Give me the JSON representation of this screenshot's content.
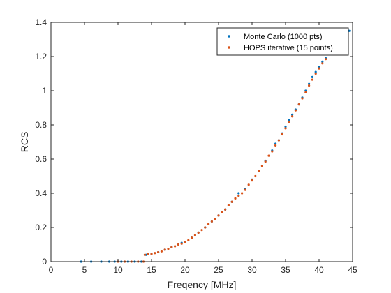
{
  "chart_data": {
    "type": "scatter",
    "title": "",
    "xlabel": "Freqency [MHz]",
    "ylabel": "RCS",
    "xlim": [
      0,
      45
    ],
    "ylim": [
      0,
      1.4
    ],
    "x_ticks": [
      0,
      5,
      10,
      15,
      20,
      25,
      30,
      35,
      40,
      45
    ],
    "y_ticks": [
      0,
      0.2,
      0.4,
      0.6,
      0.8,
      1.0,
      1.2,
      1.4
    ],
    "x_tick_labels": [
      "0",
      "5",
      "10",
      "15",
      "20",
      "25",
      "30",
      "35",
      "40",
      "45"
    ],
    "y_tick_labels": [
      "0",
      "0.2",
      "0.4",
      "0.6",
      "0.8",
      "1",
      "1.2",
      "1.4"
    ],
    "grid": false,
    "legend_position": "top-right",
    "series": [
      {
        "name": "Monte Carlo (1000 pts)",
        "color": "#0072BD",
        "points": [
          [
            4.5,
            0.0
          ],
          [
            6.0,
            0.0
          ],
          [
            7.5,
            0.0
          ],
          [
            8.7,
            0.0
          ],
          [
            9.5,
            0.0
          ],
          [
            10.5,
            0.0
          ],
          [
            11.5,
            0.0
          ],
          [
            12.5,
            0.0
          ],
          [
            13.5,
            0.0
          ],
          [
            14.2,
            0.04
          ],
          [
            15.0,
            0.045
          ],
          [
            16.0,
            0.055
          ],
          [
            17.0,
            0.07
          ],
          [
            18.0,
            0.085
          ],
          [
            19.0,
            0.1
          ],
          [
            19.5,
            0.11
          ],
          [
            20.0,
            0.115
          ],
          [
            21.0,
            0.14
          ],
          [
            22.0,
            0.17
          ],
          [
            23.0,
            0.2
          ],
          [
            24.0,
            0.235
          ],
          [
            25.0,
            0.27
          ],
          [
            26.0,
            0.305
          ],
          [
            27.0,
            0.35
          ],
          [
            28.0,
            0.4
          ],
          [
            29.0,
            0.425
          ],
          [
            30.0,
            0.48
          ],
          [
            31.0,
            0.53
          ],
          [
            32.0,
            0.59
          ],
          [
            33.0,
            0.65
          ],
          [
            33.5,
            0.69
          ],
          [
            34.0,
            0.71
          ],
          [
            34.5,
            0.75
          ],
          [
            35.0,
            0.79
          ],
          [
            35.5,
            0.83
          ],
          [
            36.0,
            0.86
          ],
          [
            36.5,
            0.89
          ],
          [
            37.0,
            0.92
          ],
          [
            37.5,
            0.96
          ],
          [
            38.0,
            1.0
          ],
          [
            38.5,
            1.04
          ],
          [
            39.0,
            1.08
          ],
          [
            39.5,
            1.11
          ],
          [
            40.0,
            1.14
          ],
          [
            40.5,
            1.17
          ],
          [
            41.0,
            1.19
          ],
          [
            44.5,
            1.35
          ]
        ]
      },
      {
        "name": "HOPS iterative (15 points)",
        "color": "#D95319",
        "points": [
          [
            10.0,
            0.0
          ],
          [
            11.0,
            0.0
          ],
          [
            12.0,
            0.0
          ],
          [
            13.0,
            0.0
          ],
          [
            13.8,
            0.0
          ],
          [
            14.0,
            0.04
          ],
          [
            14.5,
            0.045
          ],
          [
            15.0,
            0.045
          ],
          [
            15.5,
            0.05
          ],
          [
            16.0,
            0.055
          ],
          [
            16.5,
            0.06
          ],
          [
            17.0,
            0.07
          ],
          [
            17.5,
            0.075
          ],
          [
            18.0,
            0.085
          ],
          [
            18.5,
            0.09
          ],
          [
            19.0,
            0.1
          ],
          [
            19.5,
            0.105
          ],
          [
            20.0,
            0.115
          ],
          [
            20.5,
            0.125
          ],
          [
            21.0,
            0.14
          ],
          [
            21.5,
            0.155
          ],
          [
            22.0,
            0.17
          ],
          [
            22.5,
            0.185
          ],
          [
            23.0,
            0.2
          ],
          [
            23.5,
            0.22
          ],
          [
            24.0,
            0.235
          ],
          [
            24.5,
            0.25
          ],
          [
            25.0,
            0.27
          ],
          [
            25.5,
            0.29
          ],
          [
            26.0,
            0.305
          ],
          [
            26.5,
            0.33
          ],
          [
            27.0,
            0.35
          ],
          [
            27.5,
            0.37
          ],
          [
            28.0,
            0.385
          ],
          [
            28.5,
            0.4
          ],
          [
            29.0,
            0.42
          ],
          [
            29.5,
            0.45
          ],
          [
            30.0,
            0.475
          ],
          [
            30.5,
            0.5
          ],
          [
            31.0,
            0.53
          ],
          [
            31.5,
            0.56
          ],
          [
            32.0,
            0.585
          ],
          [
            32.5,
            0.62
          ],
          [
            33.0,
            0.645
          ],
          [
            33.5,
            0.68
          ],
          [
            34.0,
            0.71
          ],
          [
            34.5,
            0.745
          ],
          [
            35.0,
            0.78
          ],
          [
            35.5,
            0.815
          ],
          [
            36.0,
            0.85
          ],
          [
            36.5,
            0.885
          ],
          [
            37.0,
            0.92
          ],
          [
            37.5,
            0.955
          ],
          [
            38.0,
            0.99
          ],
          [
            38.5,
            1.03
          ],
          [
            39.0,
            1.065
          ],
          [
            39.5,
            1.1
          ],
          [
            40.0,
            1.13
          ],
          [
            40.5,
            1.16
          ],
          [
            41.0,
            1.185
          ]
        ]
      }
    ]
  }
}
